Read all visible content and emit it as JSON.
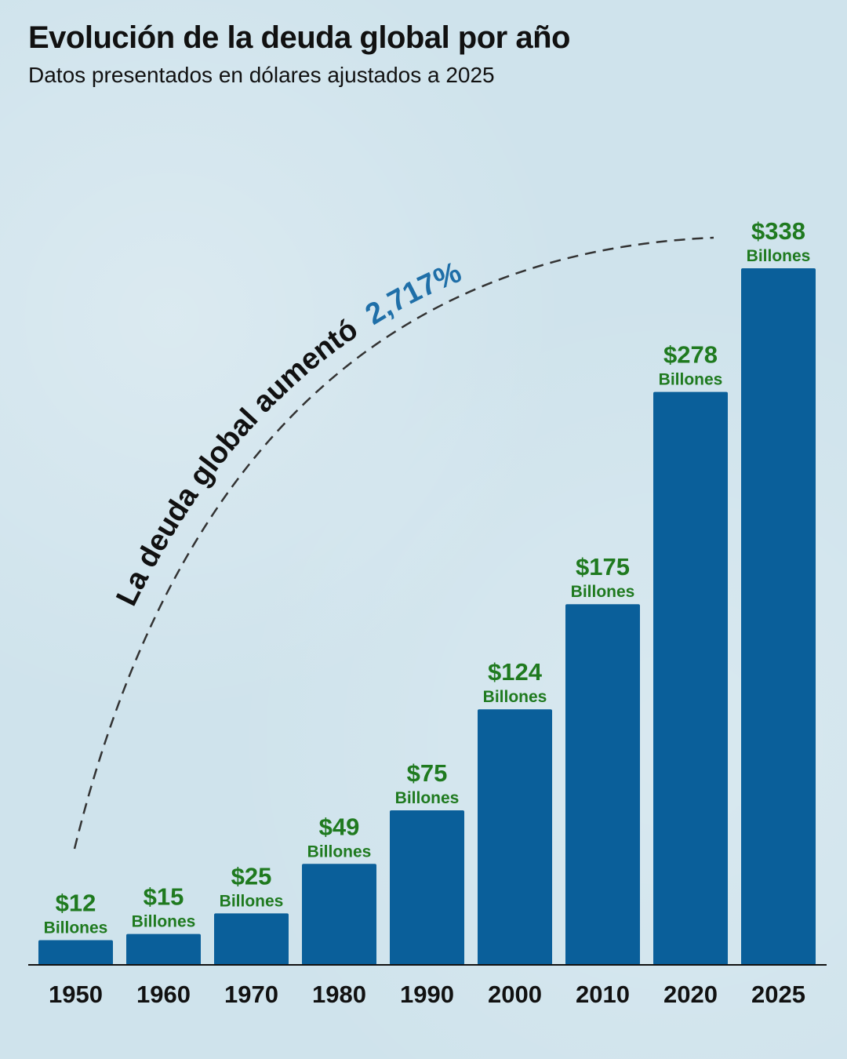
{
  "header": {
    "title": "Evolución de la deuda global por año",
    "subtitle": "Datos presentados en dólares ajustados a 2025"
  },
  "annotation": {
    "text": "La deuda global aumentó",
    "highlight": "2,717%",
    "text_color": "#111111",
    "highlight_color": "#1f6fa8"
  },
  "colors": {
    "bar": "#0a5f9a",
    "value_label": "#1f7a1f",
    "axis": "#111111"
  },
  "chart_data": {
    "type": "bar",
    "title": "Evolución de la deuda global por año",
    "subtitle": "Datos presentados en dólares ajustados a 2025",
    "categories": [
      "1950",
      "1960",
      "1970",
      "1980",
      "1990",
      "2000",
      "2010",
      "2020",
      "2025"
    ],
    "values": [
      12,
      15,
      25,
      49,
      75,
      124,
      175,
      278,
      338
    ],
    "value_labels": [
      "$12",
      "$15",
      "$25",
      "$49",
      "$75",
      "$124",
      "$175",
      "$278",
      "$338"
    ],
    "unit_label": "Billones",
    "xlabel": "",
    "ylabel": "",
    "ylim": [
      0,
      338
    ],
    "grid": false,
    "legend": "none"
  }
}
